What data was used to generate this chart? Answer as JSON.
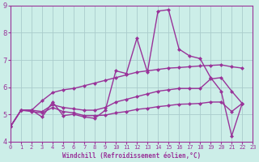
{
  "xlabel": "Windchill (Refroidissement éolien,°C)",
  "bg_color": "#cceee8",
  "grid_color": "#aacccc",
  "line_color": "#993399",
  "xlim": [
    0,
    23
  ],
  "ylim": [
    4,
    9
  ],
  "yticks": [
    4,
    5,
    6,
    7,
    8,
    9
  ],
  "xticks": [
    0,
    1,
    2,
    3,
    4,
    5,
    6,
    7,
    8,
    9,
    10,
    11,
    12,
    13,
    14,
    15,
    16,
    17,
    18,
    19,
    20,
    21,
    22,
    23
  ],
  "curve1_x": [
    0,
    1,
    2,
    3,
    4,
    5,
    6,
    7,
    8,
    9,
    10,
    11,
    12,
    13,
    14,
    15,
    16,
    17,
    18,
    19,
    20,
    21,
    22
  ],
  "curve1_y": [
    4.55,
    5.15,
    5.15,
    4.9,
    5.45,
    4.95,
    5.0,
    4.9,
    4.85,
    5.15,
    6.6,
    6.5,
    7.8,
    6.55,
    8.8,
    8.85,
    7.4,
    7.15,
    7.05,
    6.35,
    5.85,
    4.2,
    5.4
  ],
  "curve2_x": [
    0,
    1,
    2,
    3,
    4,
    5,
    6,
    7,
    8,
    9,
    10,
    11,
    12,
    13,
    14,
    15,
    16,
    17,
    18,
    19,
    20,
    21,
    22
  ],
  "curve2_y": [
    4.55,
    5.15,
    5.15,
    5.1,
    5.35,
    5.25,
    5.2,
    5.15,
    5.15,
    5.25,
    5.45,
    5.55,
    5.65,
    5.75,
    5.85,
    5.9,
    5.95,
    5.95,
    5.95,
    6.3,
    6.35,
    5.85,
    5.4
  ],
  "curve3_x": [
    0,
    1,
    2,
    3,
    4,
    5,
    6,
    7,
    8,
    9,
    10,
    11,
    12,
    13,
    14,
    15,
    16,
    17,
    18,
    19,
    20,
    21,
    22
  ],
  "curve3_y": [
    4.55,
    5.15,
    5.1,
    5.05,
    5.25,
    5.1,
    5.05,
    4.95,
    4.95,
    4.97,
    5.05,
    5.1,
    5.18,
    5.22,
    5.28,
    5.32,
    5.37,
    5.38,
    5.4,
    5.45,
    5.45,
    5.1,
    5.4
  ],
  "curve4_x": [
    0,
    1,
    2,
    3,
    4,
    5,
    6,
    7,
    8,
    9,
    10,
    11,
    12,
    13,
    14,
    15,
    16,
    17,
    18,
    19,
    20,
    21,
    22
  ],
  "curve4_y": [
    4.55,
    5.15,
    5.15,
    5.5,
    5.8,
    5.9,
    5.95,
    6.05,
    6.15,
    6.25,
    6.35,
    6.45,
    6.55,
    6.6,
    6.65,
    6.7,
    6.72,
    6.75,
    6.78,
    6.8,
    6.82,
    6.75,
    6.7
  ],
  "marker": "D",
  "markersize": 2.5,
  "linewidth": 1.0
}
